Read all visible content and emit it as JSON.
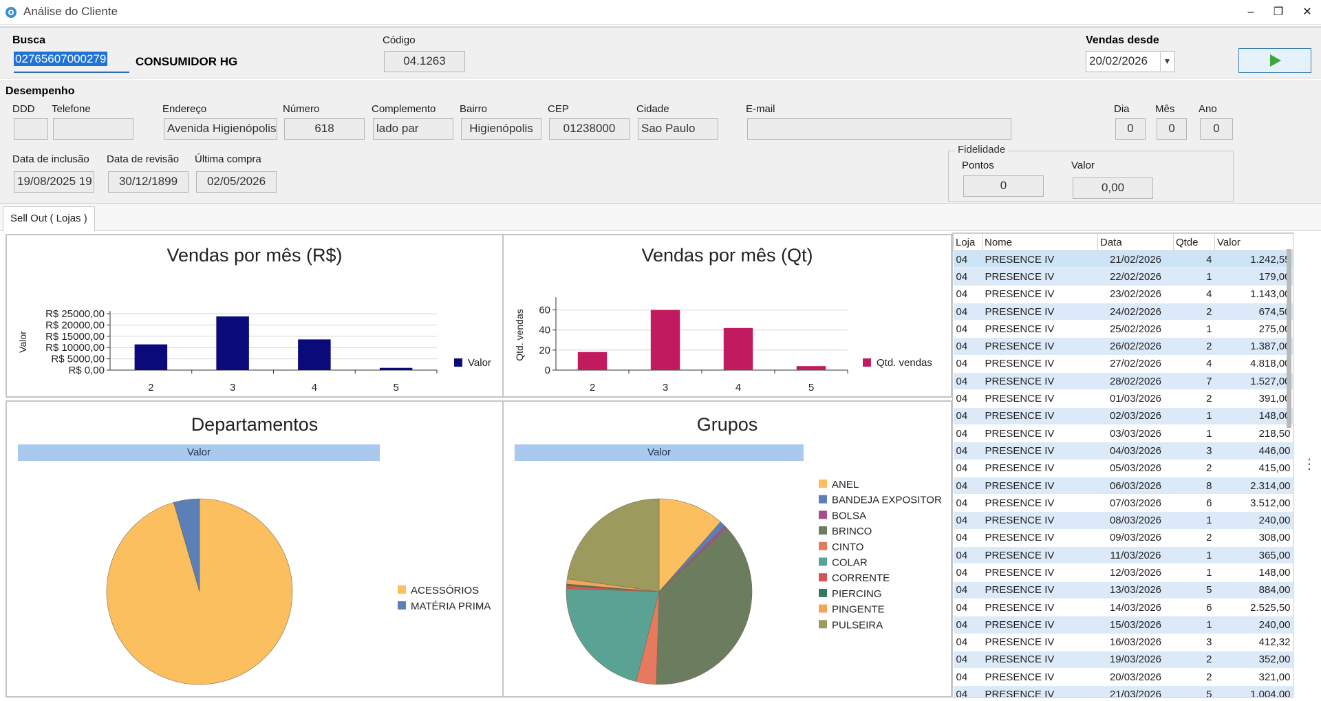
{
  "window": {
    "title": "Análise do Cliente",
    "minimize": "–",
    "restore": "❐",
    "close": "✕"
  },
  "busca": {
    "label": "Busca",
    "value": "02765607000279",
    "client_name": "CONSUMIDOR HG"
  },
  "codigo": {
    "label": "Código",
    "value": "04.1263"
  },
  "vendas_desde": {
    "label": "Vendas desde",
    "value": "20/02/2026",
    "run_icon": "play-icon"
  },
  "desempenho": {
    "label": "Desempenho",
    "ddd": {
      "label": "DDD",
      "value": ""
    },
    "telefone": {
      "label": "Telefone",
      "value": ""
    },
    "endereco": {
      "label": "Endereço",
      "value": "Avenida Higienópolis"
    },
    "numero": {
      "label": "Número",
      "value": "618"
    },
    "complemento": {
      "label": "Complemento",
      "value": "lado par"
    },
    "bairro": {
      "label": "Bairro",
      "value": "Higienópolis"
    },
    "cep": {
      "label": "CEP",
      "value": "01238000"
    },
    "cidade": {
      "label": "Cidade",
      "value": "Sao Paulo"
    },
    "email": {
      "label": "E-mail",
      "value": ""
    },
    "dia": {
      "label": "Dia",
      "value": "0"
    },
    "mes": {
      "label": "Mês",
      "value": "0"
    },
    "ano": {
      "label": "Ano",
      "value": "0"
    },
    "data_inclusao": {
      "label": "Data de inclusão",
      "value": "19/08/2025 19"
    },
    "data_revisao": {
      "label": "Data de revisão",
      "value": "30/12/1899"
    },
    "ultima_compra": {
      "label": "Última compra",
      "value": "02/05/2026"
    }
  },
  "fidelidade": {
    "title": "Fidelidade",
    "pontos_label": "Pontos",
    "pontos_value": "0",
    "valor_label": "Valor",
    "valor_value": "0,00"
  },
  "tabs": [
    {
      "label": "Sell Out ( Lojas )"
    }
  ],
  "chart_data": [
    {
      "type": "bar",
      "title": "Vendas por mês (R$)",
      "ylabel": "Valor",
      "categories": [
        "2",
        "3",
        "4",
        "5"
      ],
      "series": [
        {
          "name": "Valor",
          "values": [
            11400,
            23800,
            13600,
            1000
          ],
          "color": "#0a0a7a"
        }
      ],
      "ylim": [
        0,
        25000
      ],
      "yticks": [
        "R$ 0,00",
        "R$ 5000,00",
        "R$ 10000,00",
        "R$ 15000,00",
        "R$ 20000,00",
        "R$ 25000,00"
      ],
      "legend": "right",
      "grid": true
    },
    {
      "type": "bar",
      "title": "Vendas por mês (Qt)",
      "ylabel": "Qtd. vendas",
      "categories": [
        "2",
        "3",
        "4",
        "5"
      ],
      "series": [
        {
          "name": "Qtd. vendas",
          "values": [
            18,
            60,
            42,
            4
          ],
          "color": "#c21a5e"
        }
      ],
      "ylim": [
        0,
        70
      ],
      "yticks": [
        "0",
        "20",
        "40",
        "60"
      ],
      "legend": "right",
      "grid": true
    },
    {
      "type": "pie",
      "title": "Departamentos",
      "band_label": "Valor",
      "slices": [
        {
          "label": "ACESSÓRIOS",
          "value": 95.5,
          "color": "#fcbf5f"
        },
        {
          "label": "MATÉRIA PRIMA",
          "value": 4.5,
          "color": "#5b7fb6"
        }
      ],
      "legend": "right"
    },
    {
      "type": "pie",
      "title": "Grupos",
      "band_label": "Valor",
      "slices": [
        {
          "label": "ANEL",
          "value": 11.5,
          "color": "#fcbf5f"
        },
        {
          "label": "BANDEJA EXPOSITOR",
          "value": 1.0,
          "color": "#5b7fb6"
        },
        {
          "label": "BOLSA",
          "value": 0.5,
          "color": "#a3508a"
        },
        {
          "label": "BRINCO",
          "value": 37.5,
          "color": "#6b7d5e"
        },
        {
          "label": "CINTO",
          "value": 3.5,
          "color": "#e67a5e"
        },
        {
          "label": "COLAR",
          "value": 21.5,
          "color": "#5aa394"
        },
        {
          "label": "CORRENTE",
          "value": 0.5,
          "color": "#d65454"
        },
        {
          "label": "PIERCING",
          "value": 0.3,
          "color": "#357a5a"
        },
        {
          "label": "PINGENTE",
          "value": 0.9,
          "color": "#f2a65a"
        },
        {
          "label": "PULSEIRA",
          "value": 22.8,
          "color": "#9c9a5c"
        }
      ],
      "legend": "right"
    }
  ],
  "grid": {
    "columns": [
      "Loja",
      "Nome",
      "Data",
      "Qtde",
      "Valor"
    ],
    "rows": [
      [
        "04",
        "PRESENCE IV",
        "21/02/2026",
        "4",
        "1.242,55"
      ],
      [
        "04",
        "PRESENCE IV",
        "22/02/2026",
        "1",
        "179,00"
      ],
      [
        "04",
        "PRESENCE IV",
        "23/02/2026",
        "4",
        "1.143,00"
      ],
      [
        "04",
        "PRESENCE IV",
        "24/02/2026",
        "2",
        "674,50"
      ],
      [
        "04",
        "PRESENCE IV",
        "25/02/2026",
        "1",
        "275,00"
      ],
      [
        "04",
        "PRESENCE IV",
        "26/02/2026",
        "2",
        "1.387,00"
      ],
      [
        "04",
        "PRESENCE IV",
        "27/02/2026",
        "4",
        "4.818,00"
      ],
      [
        "04",
        "PRESENCE IV",
        "28/02/2026",
        "7",
        "1.527,00"
      ],
      [
        "04",
        "PRESENCE IV",
        "01/03/2026",
        "2",
        "391,00"
      ],
      [
        "04",
        "PRESENCE IV",
        "02/03/2026",
        "1",
        "148,00"
      ],
      [
        "04",
        "PRESENCE IV",
        "03/03/2026",
        "1",
        "218,50"
      ],
      [
        "04",
        "PRESENCE IV",
        "04/03/2026",
        "3",
        "446,00"
      ],
      [
        "04",
        "PRESENCE IV",
        "05/03/2026",
        "2",
        "415,00"
      ],
      [
        "04",
        "PRESENCE IV",
        "06/03/2026",
        "8",
        "2.314,00"
      ],
      [
        "04",
        "PRESENCE IV",
        "07/03/2026",
        "6",
        "3.512,00"
      ],
      [
        "04",
        "PRESENCE IV",
        "08/03/2026",
        "1",
        "240,00"
      ],
      [
        "04",
        "PRESENCE IV",
        "09/03/2026",
        "2",
        "308,00"
      ],
      [
        "04",
        "PRESENCE IV",
        "11/03/2026",
        "1",
        "365,00"
      ],
      [
        "04",
        "PRESENCE IV",
        "12/03/2026",
        "1",
        "148,00"
      ],
      [
        "04",
        "PRESENCE IV",
        "13/03/2026",
        "5",
        "884,00"
      ],
      [
        "04",
        "PRESENCE IV",
        "14/03/2026",
        "6",
        "2.525,50"
      ],
      [
        "04",
        "PRESENCE IV",
        "15/03/2026",
        "1",
        "240,00"
      ],
      [
        "04",
        "PRESENCE IV",
        "16/03/2026",
        "3",
        "412,32"
      ],
      [
        "04",
        "PRESENCE IV",
        "19/03/2026",
        "2",
        "352,00"
      ],
      [
        "04",
        "PRESENCE IV",
        "20/03/2026",
        "2",
        "321,00"
      ],
      [
        "04",
        "PRESENCE IV",
        "21/03/2026",
        "5",
        "1.004,00"
      ]
    ]
  }
}
